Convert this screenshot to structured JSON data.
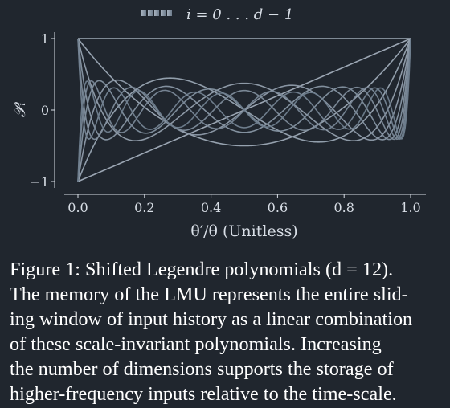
{
  "chart_data": {
    "type": "line",
    "title": "",
    "legend": {
      "label": "i = 0 . . . d − 1",
      "placement": "top-center"
    },
    "xlabel": "θ′/θ (Unitless)",
    "ylabel": "𝒫ᵢ",
    "xlim": [
      0.0,
      1.0
    ],
    "ylim": [
      -1.1,
      1.1
    ],
    "xticks": [
      "0.0",
      "0.2",
      "0.4",
      "0.6",
      "0.8",
      "1.0"
    ],
    "yticks": [
      "1",
      "0",
      "−1"
    ],
    "grid": false,
    "colormap": [
      "#a7b2bf",
      "#6f7e8e"
    ],
    "d": 12,
    "series_function": "shifted Legendre polynomials P_i(2x - 1), normalized to [-1, 1]",
    "series": [
      {
        "degree": 0
      },
      {
        "degree": 1
      },
      {
        "degree": 2
      },
      {
        "degree": 3
      },
      {
        "degree": 4
      },
      {
        "degree": 5
      },
      {
        "degree": 6
      },
      {
        "degree": 7
      },
      {
        "degree": 8
      },
      {
        "degree": 9
      },
      {
        "degree": 10
      },
      {
        "degree": 11
      }
    ]
  },
  "caption": {
    "lines": [
      "Figure 1: Shifted Legendre polynomials (d = 12).",
      "The memory of the LMU represents the entire slid-",
      "ing window of input history as a linear combination",
      "of these scale-invariant polynomials. Increasing",
      "the number of dimensions supports the storage of",
      "higher-frequency inputs relative to the time-scale."
    ]
  }
}
